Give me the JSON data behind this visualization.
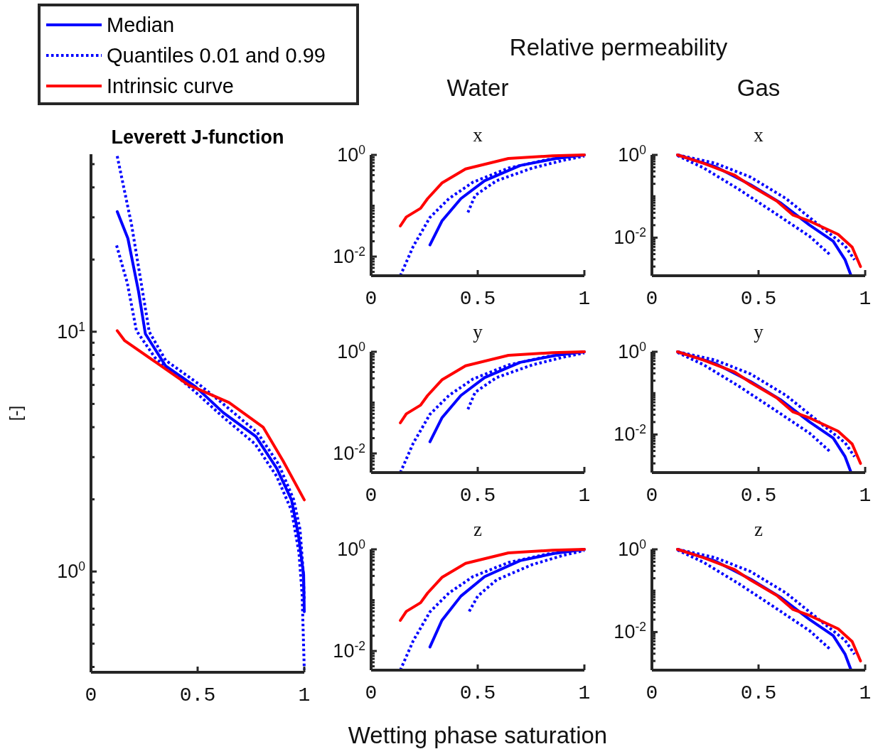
{
  "chart_data": [
    {
      "type": "line",
      "title": "Leverett J-function",
      "ylabel": "[-]",
      "log": "y",
      "legend": "top left",
      "xlim": [
        0,
        1
      ],
      "xticks": [
        0,
        0.5,
        1
      ],
      "ylim": [
        0.38,
        55
      ],
      "yticks": [
        {
          "value": 0.4,
          "label": null
        },
        {
          "value": 0.5,
          "label": null
        },
        {
          "value": 0.6,
          "label": null
        },
        {
          "value": 0.7,
          "label": null
        },
        {
          "value": 0.8,
          "label": null
        },
        {
          "value": 0.9,
          "label": null
        },
        {
          "value": 1,
          "label": "10$^{0}$"
        },
        {
          "value": 2,
          "label": null
        },
        {
          "value": 3,
          "label": null
        },
        {
          "value": 4,
          "label": null
        },
        {
          "value": 5,
          "label": null
        },
        {
          "value": 6,
          "label": null
        },
        {
          "value": 7,
          "label": null
        },
        {
          "value": 8,
          "label": null
        },
        {
          "value": 9,
          "label": null
        },
        {
          "value": 10,
          "label": "10$^{1}$"
        },
        {
          "value": 20,
          "label": null
        },
        {
          "value": 30,
          "label": null
        },
        {
          "value": 40,
          "label": null
        },
        {
          "value": 50,
          "label": null
        }
      ],
      "series": [
        {
          "name": "Median",
          "color": "#0000ff",
          "line_style": "solid",
          "x": [
            0.123,
            0.173,
            0.223,
            0.255,
            0.35,
            0.49,
            0.62,
            0.773,
            0.87,
            0.94,
            0.973,
            0.997,
            1.0
          ],
          "values": [
            31.7,
            24.5,
            14.7,
            9.8,
            7.2,
            5.9,
            4.6,
            3.66,
            2.7,
            1.99,
            1.41,
            0.97,
            0.68
          ]
        },
        {
          "name": "Quantiles 0.01 and 0.99",
          "color": "#0000ff",
          "line_style": "dotted",
          "x": [
            0.123,
            0.19,
            0.273,
            0.35,
            0.5,
            0.62,
            0.78,
            0.88,
            0.95,
            0.98,
            0.995,
            1.0
          ],
          "values": [
            54,
            28,
            10,
            7.6,
            6.1,
            5.0,
            3.8,
            2.8,
            2.0,
            1.5,
            1.0,
            0.75
          ]
        },
        {
          "color": "#0000ff",
          "line_style": "dotted",
          "x": [
            0.12,
            0.17,
            0.213,
            0.3,
            0.5,
            0.62,
            0.77,
            0.87,
            0.94,
            0.975,
            0.99,
            1.0
          ],
          "values": [
            22.9,
            16,
            10.1,
            7.8,
            5.5,
            4.4,
            3.4,
            2.5,
            1.8,
            1.2,
            0.8,
            0.39
          ]
        },
        {
          "name": "Intrinsic curve",
          "color": "#ff0000",
          "line_style": "solid",
          "x": [
            0.123,
            0.157,
            0.3,
            0.457,
            0.647,
            0.807,
            0.9,
            1.0
          ],
          "values": [
            10.1,
            9.2,
            7.5,
            6.0,
            5.07,
            4.0,
            2.9,
            1.99
          ]
        }
      ]
    },
    {
      "type": "line",
      "title": "Water",
      "subtitle": "x",
      "annotations": [
        "Relative permeability"
      ],
      "log": "y",
      "xlim": [
        0,
        1
      ],
      "xticks": [
        0,
        0.5,
        1
      ],
      "ylim": [
        0.0042,
        1
      ],
      "yticks": [
        {
          "value": 0.005,
          "label": null
        },
        {
          "value": 0.006,
          "label": null
        },
        {
          "value": 0.007,
          "label": null
        },
        {
          "value": 0.008,
          "label": null
        },
        {
          "value": 0.009,
          "label": null
        },
        {
          "value": 0.01,
          "label": "10$^{-2}$"
        },
        {
          "value": 0.02,
          "label": null
        },
        {
          "value": 0.03,
          "label": null
        },
        {
          "value": 0.04,
          "label": null
        },
        {
          "value": 0.05,
          "label": null
        },
        {
          "value": 0.06,
          "label": null
        },
        {
          "value": 0.07,
          "label": null
        },
        {
          "value": 0.08,
          "label": null
        },
        {
          "value": 0.09,
          "label": null
        },
        {
          "value": 0.1,
          "label": null
        },
        {
          "value": 0.2,
          "label": null
        },
        {
          "value": 0.3,
          "label": null
        },
        {
          "value": 0.4,
          "label": null
        },
        {
          "value": 0.5,
          "label": null
        },
        {
          "value": 0.6,
          "label": null
        },
        {
          "value": 0.7,
          "label": null
        },
        {
          "value": 0.8,
          "label": null
        },
        {
          "value": 0.9,
          "label": null
        },
        {
          "value": 1,
          "label": "10$^{0}$"
        }
      ],
      "series": [
        {
          "color": "#0000ff",
          "line_style": "solid",
          "x": [
            0.276,
            0.332,
            0.421,
            0.532,
            0.699,
            0.866,
            1
          ],
          "values": [
            0.017,
            0.05,
            0.138,
            0.31,
            0.62,
            0.85,
            1
          ]
        },
        {
          "color": "#0000ff",
          "line_style": "dotted",
          "x": [
            0.137,
            0.198,
            0.276,
            0.365,
            0.477,
            0.644,
            0.82,
            1
          ],
          "values": [
            0.0042,
            0.016,
            0.059,
            0.138,
            0.29,
            0.55,
            0.8,
            1
          ]
        },
        {
          "color": "#0000ff",
          "line_style": "dotted",
          "x": [
            0.454,
            0.488,
            0.588,
            0.755,
            0.9,
            1
          ],
          "values": [
            0.074,
            0.16,
            0.31,
            0.55,
            0.78,
            0.95
          ]
        },
        {
          "color": "#ff0000",
          "line_style": "solid",
          "x": [
            0.137,
            0.165,
            0.232,
            0.265,
            0.332,
            0.443,
            0.644,
            0.85,
            1
          ],
          "values": [
            0.04,
            0.06,
            0.089,
            0.138,
            0.28,
            0.53,
            0.85,
            0.96,
            1
          ]
        }
      ]
    },
    {
      "type": "line",
      "title": "Gas",
      "subtitle": "x",
      "log": "y",
      "xlim": [
        0,
        1
      ],
      "xticks": [
        0,
        0.5,
        1
      ],
      "ylim": [
        0.0012,
        1
      ],
      "yticks": [
        {
          "value": 0.002,
          "label": null
        },
        {
          "value": 0.003,
          "label": null
        },
        {
          "value": 0.004,
          "label": null
        },
        {
          "value": 0.005,
          "label": null
        },
        {
          "value": 0.006,
          "label": null
        },
        {
          "value": 0.007,
          "label": null
        },
        {
          "value": 0.008,
          "label": null
        },
        {
          "value": 0.009,
          "label": null
        },
        {
          "value": 0.01,
          "label": "10$^{-2}$"
        },
        {
          "value": 0.02,
          "label": null
        },
        {
          "value": 0.03,
          "label": null
        },
        {
          "value": 0.04,
          "label": null
        },
        {
          "value": 0.05,
          "label": null
        },
        {
          "value": 0.06,
          "label": null
        },
        {
          "value": 0.07,
          "label": null
        },
        {
          "value": 0.08,
          "label": null
        },
        {
          "value": 0.09,
          "label": null
        },
        {
          "value": 0.1,
          "label": null
        },
        {
          "value": 0.2,
          "label": null
        },
        {
          "value": 0.3,
          "label": null
        },
        {
          "value": 0.4,
          "label": null
        },
        {
          "value": 0.5,
          "label": null
        },
        {
          "value": 0.6,
          "label": null
        },
        {
          "value": 0.7,
          "label": null
        },
        {
          "value": 0.8,
          "label": null
        },
        {
          "value": 0.9,
          "label": null
        },
        {
          "value": 1,
          "label": "10$^{0}$"
        }
      ],
      "series": [
        {
          "color": "#0000ff",
          "line_style": "solid",
          "x": [
            0.12,
            0.297,
            0.463,
            0.607,
            0.74,
            0.85,
            0.906,
            0.934
          ],
          "values": [
            1,
            0.52,
            0.19,
            0.067,
            0.02,
            0.0082,
            0.0029,
            0.0012
          ]
        },
        {
          "color": "#0000ff",
          "line_style": "dotted",
          "x": [
            0.12,
            0.297,
            0.463,
            0.629,
            0.795,
            0.906,
            0.95
          ],
          "values": [
            1,
            0.63,
            0.29,
            0.088,
            0.018,
            0.0063,
            0.0029
          ]
        },
        {
          "color": "#0000ff",
          "line_style": "dotted",
          "x": [
            0.12,
            0.241,
            0.407,
            0.574,
            0.74,
            0.839
          ],
          "values": [
            0.96,
            0.49,
            0.148,
            0.04,
            0.0107,
            0.0037
          ]
        },
        {
          "color": "#ff0000",
          "line_style": "solid",
          "x": [
            0.12,
            0.241,
            0.385,
            0.463,
            0.585,
            0.662,
            0.74,
            0.873,
            0.939,
            0.978
          ],
          "values": [
            1,
            0.63,
            0.33,
            0.18,
            0.077,
            0.035,
            0.025,
            0.012,
            0.0059,
            0.002
          ]
        }
      ]
    },
    {
      "type": "line",
      "title": "y",
      "log": "y",
      "xlim": [
        0,
        1
      ],
      "xticks": [
        0,
        0.5,
        1
      ],
      "ylim": [
        0.0042,
        1
      ],
      "yticks": [
        {
          "value": 0.005,
          "label": null
        },
        {
          "value": 0.006,
          "label": null
        },
        {
          "value": 0.007,
          "label": null
        },
        {
          "value": 0.008,
          "label": null
        },
        {
          "value": 0.009,
          "label": null
        },
        {
          "value": 0.01,
          "label": "10$^{-2}$"
        },
        {
          "value": 0.02,
          "label": null
        },
        {
          "value": 0.03,
          "label": null
        },
        {
          "value": 0.04,
          "label": null
        },
        {
          "value": 0.05,
          "label": null
        },
        {
          "value": 0.06,
          "label": null
        },
        {
          "value": 0.07,
          "label": null
        },
        {
          "value": 0.08,
          "label": null
        },
        {
          "value": 0.09,
          "label": null
        },
        {
          "value": 0.1,
          "label": null
        },
        {
          "value": 0.2,
          "label": null
        },
        {
          "value": 0.3,
          "label": null
        },
        {
          "value": 0.4,
          "label": null
        },
        {
          "value": 0.5,
          "label": null
        },
        {
          "value": 0.6,
          "label": null
        },
        {
          "value": 0.7,
          "label": null
        },
        {
          "value": 0.8,
          "label": null
        },
        {
          "value": 0.9,
          "label": null
        },
        {
          "value": 1,
          "label": "10$^{0}$"
        }
      ],
      "series": [
        {
          "color": "#0000ff",
          "line_style": "solid",
          "x": [
            0.276,
            0.332,
            0.421,
            0.532,
            0.699,
            0.866,
            1
          ],
          "values": [
            0.017,
            0.05,
            0.138,
            0.31,
            0.62,
            0.85,
            1
          ]
        },
        {
          "color": "#0000ff",
          "line_style": "dotted",
          "x": [
            0.137,
            0.198,
            0.276,
            0.365,
            0.477,
            0.644,
            0.82,
            1
          ],
          "values": [
            0.0042,
            0.016,
            0.059,
            0.138,
            0.29,
            0.55,
            0.8,
            1
          ]
        },
        {
          "color": "#0000ff",
          "line_style": "dotted",
          "x": [
            0.454,
            0.488,
            0.588,
            0.755,
            0.9,
            1
          ],
          "values": [
            0.074,
            0.16,
            0.31,
            0.55,
            0.78,
            0.95
          ]
        },
        {
          "color": "#ff0000",
          "line_style": "solid",
          "x": [
            0.137,
            0.165,
            0.232,
            0.265,
            0.332,
            0.443,
            0.644,
            0.85,
            1
          ],
          "values": [
            0.04,
            0.06,
            0.089,
            0.138,
            0.28,
            0.53,
            0.85,
            0.96,
            1
          ]
        }
      ]
    },
    {
      "type": "line",
      "title": "y",
      "log": "y",
      "xlim": [
        0,
        1
      ],
      "xticks": [
        0,
        0.5,
        1
      ],
      "ylim": [
        0.0012,
        1
      ],
      "yticks": [
        {
          "value": 0.002,
          "label": null
        },
        {
          "value": 0.003,
          "label": null
        },
        {
          "value": 0.004,
          "label": null
        },
        {
          "value": 0.005,
          "label": null
        },
        {
          "value": 0.006,
          "label": null
        },
        {
          "value": 0.007,
          "label": null
        },
        {
          "value": 0.008,
          "label": null
        },
        {
          "value": 0.009,
          "label": null
        },
        {
          "value": 0.01,
          "label": "10$^{-2}$"
        },
        {
          "value": 0.02,
          "label": null
        },
        {
          "value": 0.03,
          "label": null
        },
        {
          "value": 0.04,
          "label": null
        },
        {
          "value": 0.05,
          "label": null
        },
        {
          "value": 0.06,
          "label": null
        },
        {
          "value": 0.07,
          "label": null
        },
        {
          "value": 0.08,
          "label": null
        },
        {
          "value": 0.09,
          "label": null
        },
        {
          "value": 0.1,
          "label": null
        },
        {
          "value": 0.2,
          "label": null
        },
        {
          "value": 0.3,
          "label": null
        },
        {
          "value": 0.4,
          "label": null
        },
        {
          "value": 0.5,
          "label": null
        },
        {
          "value": 0.6,
          "label": null
        },
        {
          "value": 0.7,
          "label": null
        },
        {
          "value": 0.8,
          "label": null
        },
        {
          "value": 0.9,
          "label": null
        },
        {
          "value": 1,
          "label": "10$^{0}$"
        }
      ],
      "series": [
        {
          "color": "#0000ff",
          "line_style": "solid",
          "x": [
            0.12,
            0.297,
            0.463,
            0.607,
            0.74,
            0.85,
            0.906,
            0.934
          ],
          "values": [
            1,
            0.52,
            0.19,
            0.067,
            0.02,
            0.0082,
            0.0029,
            0.0012
          ]
        },
        {
          "color": "#0000ff",
          "line_style": "dotted",
          "x": [
            0.12,
            0.297,
            0.463,
            0.629,
            0.795,
            0.906,
            0.95
          ],
          "values": [
            1,
            0.63,
            0.29,
            0.088,
            0.018,
            0.0063,
            0.0029
          ]
        },
        {
          "color": "#0000ff",
          "line_style": "dotted",
          "x": [
            0.12,
            0.241,
            0.407,
            0.574,
            0.74,
            0.839
          ],
          "values": [
            0.96,
            0.49,
            0.148,
            0.04,
            0.0107,
            0.0037
          ]
        },
        {
          "color": "#ff0000",
          "line_style": "solid",
          "x": [
            0.12,
            0.241,
            0.385,
            0.463,
            0.585,
            0.662,
            0.74,
            0.873,
            0.939,
            0.978
          ],
          "values": [
            1,
            0.63,
            0.33,
            0.18,
            0.077,
            0.035,
            0.025,
            0.012,
            0.0059,
            0.002
          ]
        }
      ]
    },
    {
      "type": "line",
      "title": "z",
      "xlabel": "Wetting phase saturation",
      "log": "y",
      "xlim": [
        0,
        1
      ],
      "xticks": [
        0,
        0.5,
        1
      ],
      "ylim": [
        0.0042,
        1
      ],
      "yticks": [
        {
          "value": 0.005,
          "label": null
        },
        {
          "value": 0.006,
          "label": null
        },
        {
          "value": 0.007,
          "label": null
        },
        {
          "value": 0.008,
          "label": null
        },
        {
          "value": 0.009,
          "label": null
        },
        {
          "value": 0.01,
          "label": "10$^{-2}$"
        },
        {
          "value": 0.02,
          "label": null
        },
        {
          "value": 0.03,
          "label": null
        },
        {
          "value": 0.04,
          "label": null
        },
        {
          "value": 0.05,
          "label": null
        },
        {
          "value": 0.06,
          "label": null
        },
        {
          "value": 0.07,
          "label": null
        },
        {
          "value": 0.08,
          "label": null
        },
        {
          "value": 0.09,
          "label": null
        },
        {
          "value": 0.1,
          "label": null
        },
        {
          "value": 0.2,
          "label": null
        },
        {
          "value": 0.3,
          "label": null
        },
        {
          "value": 0.4,
          "label": null
        },
        {
          "value": 0.5,
          "label": null
        },
        {
          "value": 0.6,
          "label": null
        },
        {
          "value": 0.7,
          "label": null
        },
        {
          "value": 0.8,
          "label": null
        },
        {
          "value": 0.9,
          "label": null
        },
        {
          "value": 1,
          "label": "10$^{0}$"
        }
      ],
      "series": [
        {
          "color": "#0000ff",
          "line_style": "solid",
          "x": [
            0.276,
            0.332,
            0.421,
            0.532,
            0.699,
            0.866,
            1
          ],
          "values": [
            0.012,
            0.04,
            0.12,
            0.29,
            0.6,
            0.84,
            1
          ]
        },
        {
          "color": "#0000ff",
          "line_style": "dotted",
          "x": [
            0.137,
            0.198,
            0.276,
            0.365,
            0.477,
            0.644,
            0.82,
            1
          ],
          "values": [
            0.0042,
            0.016,
            0.059,
            0.138,
            0.29,
            0.55,
            0.8,
            1
          ]
        },
        {
          "color": "#0000ff",
          "line_style": "dotted",
          "x": [
            0.46,
            0.5,
            0.588,
            0.755,
            0.9,
            1
          ],
          "values": [
            0.06,
            0.12,
            0.25,
            0.5,
            0.76,
            0.95
          ]
        },
        {
          "color": "#ff0000",
          "line_style": "solid",
          "x": [
            0.137,
            0.165,
            0.232,
            0.265,
            0.332,
            0.443,
            0.644,
            0.85,
            1
          ],
          "values": [
            0.04,
            0.06,
            0.089,
            0.138,
            0.28,
            0.53,
            0.85,
            0.96,
            1
          ]
        }
      ]
    },
    {
      "type": "line",
      "title": "z",
      "log": "y",
      "xlim": [
        0,
        1
      ],
      "xticks": [
        0,
        0.5,
        1
      ],
      "ylim": [
        0.0012,
        1
      ],
      "yticks": [
        {
          "value": 0.002,
          "label": null
        },
        {
          "value": 0.003,
          "label": null
        },
        {
          "value": 0.004,
          "label": null
        },
        {
          "value": 0.005,
          "label": null
        },
        {
          "value": 0.006,
          "label": null
        },
        {
          "value": 0.007,
          "label": null
        },
        {
          "value": 0.008,
          "label": null
        },
        {
          "value": 0.009,
          "label": null
        },
        {
          "value": 0.01,
          "label": "10$^{-2}$"
        },
        {
          "value": 0.02,
          "label": null
        },
        {
          "value": 0.03,
          "label": null
        },
        {
          "value": 0.04,
          "label": null
        },
        {
          "value": 0.05,
          "label": null
        },
        {
          "value": 0.06,
          "label": null
        },
        {
          "value": 0.07,
          "label": null
        },
        {
          "value": 0.08,
          "label": null
        },
        {
          "value": 0.09,
          "label": null
        },
        {
          "value": 0.1,
          "label": null
        },
        {
          "value": 0.2,
          "label": null
        },
        {
          "value": 0.3,
          "label": null
        },
        {
          "value": 0.4,
          "label": null
        },
        {
          "value": 0.5,
          "label": null
        },
        {
          "value": 0.6,
          "label": null
        },
        {
          "value": 0.7,
          "label": null
        },
        {
          "value": 0.8,
          "label": null
        },
        {
          "value": 0.9,
          "label": null
        },
        {
          "value": 1,
          "label": "10$^{0}$"
        }
      ],
      "series": [
        {
          "color": "#0000ff",
          "line_style": "solid",
          "x": [
            0.12,
            0.297,
            0.463,
            0.607,
            0.74,
            0.85,
            0.906,
            0.934
          ],
          "values": [
            1,
            0.52,
            0.19,
            0.067,
            0.02,
            0.0082,
            0.0029,
            0.0012
          ]
        },
        {
          "color": "#0000ff",
          "line_style": "dotted",
          "x": [
            0.12,
            0.297,
            0.463,
            0.629,
            0.795,
            0.906,
            0.95
          ],
          "values": [
            1,
            0.63,
            0.29,
            0.088,
            0.018,
            0.0063,
            0.0029
          ]
        },
        {
          "color": "#0000ff",
          "line_style": "dotted",
          "x": [
            0.12,
            0.241,
            0.407,
            0.574,
            0.74,
            0.839
          ],
          "values": [
            0.96,
            0.49,
            0.148,
            0.04,
            0.0107,
            0.0037
          ]
        },
        {
          "color": "#ff0000",
          "line_style": "solid",
          "x": [
            0.12,
            0.241,
            0.385,
            0.463,
            0.585,
            0.662,
            0.74,
            0.873,
            0.939,
            0.978
          ],
          "values": [
            1,
            0.63,
            0.33,
            0.18,
            0.077,
            0.035,
            0.025,
            0.012,
            0.0059,
            0.002
          ]
        }
      ]
    }
  ]
}
